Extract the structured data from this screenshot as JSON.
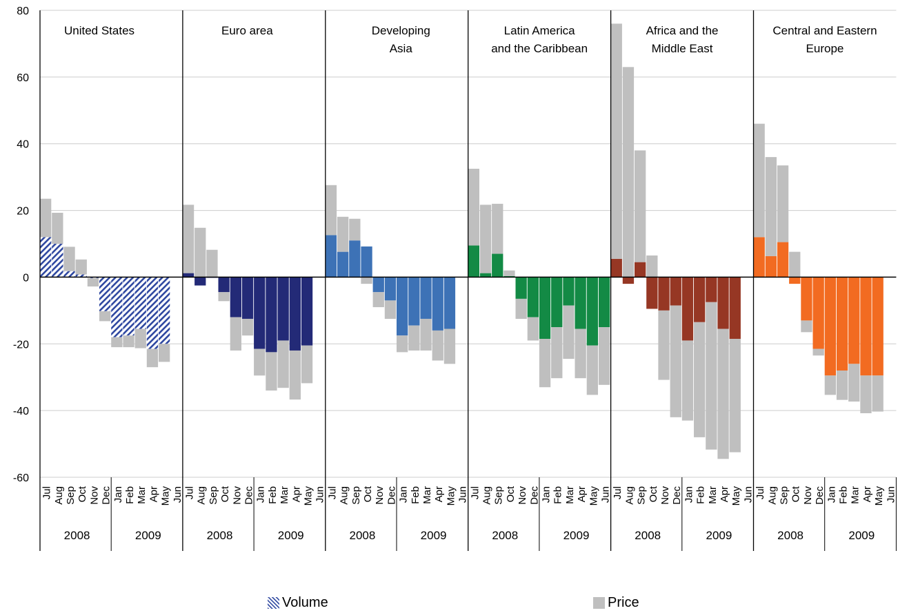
{
  "chart_data": {
    "type": "bar",
    "stacked": true,
    "ylim": [
      -60,
      80
    ],
    "yticks": [
      80,
      60,
      40,
      20,
      0,
      -20,
      -40,
      -60
    ],
    "grid": true,
    "legend_position": "bottom",
    "months": [
      "Jul",
      "Aug",
      "Sep",
      "Oct",
      "Nov",
      "Dec",
      "Jan",
      "Feb",
      "Mar",
      "Apr",
      "May",
      "Jun"
    ],
    "years": [
      "2008",
      "2009"
    ],
    "series_names": [
      "Volume",
      "Price"
    ],
    "colors": {
      "Price": "#bfbfbf"
    },
    "panels": [
      {
        "title": "United States",
        "color": "#2e47a0",
        "hatched": true,
        "volume": [
          12,
          10,
          1.8,
          0.8,
          -0.3,
          -10.2,
          -18,
          -17.5,
          -15.5,
          -21.5,
          -20,
          null
        ],
        "price": [
          11.5,
          9.3,
          7.3,
          4.5,
          -2.5,
          -3,
          -3,
          -3.5,
          -5.8,
          -5.5,
          -5.4,
          null
        ]
      },
      {
        "title": "Euro area",
        "color": "#232a77",
        "volume": [
          1.2,
          -2.5,
          -0.2,
          -4.5,
          -12,
          -12.5,
          -21.5,
          -22.5,
          -19,
          -22,
          -20.5,
          null
        ],
        "price": [
          20.5,
          14.8,
          8.2,
          -2.7,
          -10,
          -5,
          -8,
          -11.5,
          -14.2,
          -14.7,
          -11.3,
          null
        ]
      },
      {
        "title": "Developing\nAsia",
        "color": "#3d72b6",
        "volume": [
          12.6,
          7.6,
          11,
          9.2,
          -4.5,
          -7,
          -17.5,
          -14.5,
          -12.5,
          -16,
          -15.5,
          null
        ],
        "price": [
          15,
          10.5,
          6.5,
          -2,
          -4.5,
          -5.5,
          -5,
          -7.5,
          -9.5,
          -9,
          -10.5,
          null
        ]
      },
      {
        "title": "Latin America\nand the Caribbean",
        "color": "#138a45",
        "volume": [
          9.5,
          1.2,
          7,
          0.3,
          -6.5,
          -12,
          -18.5,
          -15,
          -8.5,
          -15.5,
          -20.5,
          -15
        ],
        "price": [
          23,
          20.5,
          15,
          1.7,
          -6,
          -7,
          -14.5,
          -15.3,
          -16,
          -14.8,
          -14.8,
          -17.3
        ]
      },
      {
        "title": "Africa and the\nMiddle East",
        "color": "#963724",
        "volume": [
          5.5,
          -2,
          4.5,
          -9.5,
          -10,
          -8.5,
          -19,
          -13.5,
          -7.5,
          -15.5,
          -18.5,
          null
        ],
        "price": [
          70.5,
          63,
          33.5,
          6.5,
          -20.8,
          -33.5,
          -24,
          -34.5,
          -44.2,
          -39,
          -34,
          null
        ]
      },
      {
        "title": "Central and Eastern\nEurope",
        "color": "#f26b21",
        "volume": [
          12,
          6.3,
          10.5,
          -2,
          -13,
          -21.5,
          -29.5,
          -28,
          -26,
          -29.5,
          -29.5,
          null
        ],
        "price": [
          34,
          29.7,
          23,
          7.6,
          -3.5,
          -2,
          -5.8,
          -8.8,
          -11.3,
          -11.3,
          -10.8,
          null
        ]
      }
    ]
  },
  "legend": {
    "volume_label": "Volume",
    "price_label": "Price"
  }
}
